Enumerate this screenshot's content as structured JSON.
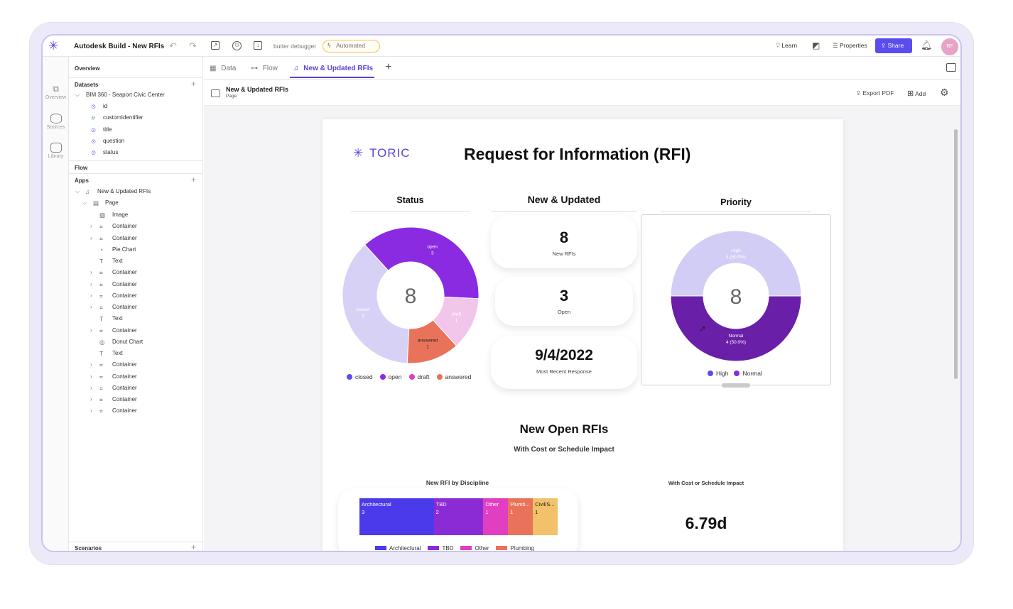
{
  "app": {
    "title": "Autodesk Build - New RFIs",
    "debugger": "butter debugger",
    "automated": "Automated",
    "learn": "Learn",
    "properties": "Properties",
    "share": "Share",
    "avatar": "RF"
  },
  "rail": [
    {
      "label": "Overview",
      "icon": "overview-icon"
    },
    {
      "label": "Sources",
      "icon": "database-icon"
    },
    {
      "label": "Library",
      "icon": "library-icon"
    }
  ],
  "sidebar": {
    "overview": "Overview",
    "datasets": "Datasets",
    "dataset_name": "BIM 360 - Seaport Civic Center",
    "fields": [
      "id",
      "customIdentifier",
      "title",
      "question",
      "status"
    ],
    "flow": "Flow",
    "apps": "Apps",
    "app_name": "New & Updated RFIs",
    "page": "Page",
    "components": [
      "Image",
      "Container",
      "Container",
      "Pie Chart",
      "Text",
      "Container",
      "Container",
      "Container",
      "Container",
      "Text",
      "Container",
      "Donut Chart",
      "Text",
      "Container",
      "Container",
      "Container",
      "Container",
      "Container"
    ],
    "scenarios": "Scenarios"
  },
  "tabs": [
    "Data",
    "Flow",
    "New & Updated RFIs"
  ],
  "pagebar": {
    "title": "New & Updated RFIs",
    "subtitle": "Page",
    "export": "Export PDF",
    "add": "Add"
  },
  "report": {
    "logo": "TORIC",
    "title": "Request for Information (RFI)",
    "status_title": "Status",
    "new_updated_title": "New & Updated",
    "priority_title": "Priority",
    "kpis": [
      {
        "value": "8",
        "label": "New RFIs"
      },
      {
        "value": "3",
        "label": "Open"
      },
      {
        "value": "9/4/2022",
        "label": "Most Recent Response"
      }
    ],
    "open_title": "New Open RFIs",
    "open_subtitle": "With Cost or Schedule Impact",
    "discipline_title": "New RFI by Discipline",
    "impact_title": "With Cost or Schedule Impact",
    "impact_value": "6.79d"
  },
  "status_chart": {
    "type": "pie",
    "center": "8",
    "slices": [
      {
        "name": "open",
        "value": 3,
        "color": "#8a2be2"
      },
      {
        "name": "draft",
        "value": 1,
        "color": "#f2c6ea"
      },
      {
        "name": "answered",
        "value": 1,
        "color": "#e8735a"
      },
      {
        "name": "closed",
        "value": 3,
        "color": "#d7d1f5"
      }
    ],
    "legend": [
      {
        "name": "closed",
        "color": "#5b4cf0"
      },
      {
        "name": "open",
        "color": "#8a2be2"
      },
      {
        "name": "draft",
        "color": "#d63fc9"
      },
      {
        "name": "answered",
        "color": "#e8735a"
      }
    ]
  },
  "priority_chart": {
    "type": "pie",
    "center": "8",
    "slices": [
      {
        "name": "High",
        "label": "4 (50.0%)",
        "value": 4,
        "color": "#d2cdf5"
      },
      {
        "name": "Normal",
        "label": "4 (50.0%)",
        "value": 4,
        "color": "#6a1fa8"
      }
    ],
    "legend": [
      {
        "name": "High",
        "color": "#5b4cf0"
      },
      {
        "name": "Normal",
        "color": "#8a2be2"
      }
    ]
  },
  "discipline_chart": {
    "type": "bar",
    "segments": [
      {
        "name": "Architectural",
        "label": "Architectural",
        "value": 3,
        "color": "#4b3aea"
      },
      {
        "name": "TBD",
        "label": "TBD",
        "value": 2,
        "color": "#8a2bd6"
      },
      {
        "name": "Other",
        "label": "Other",
        "value": 1,
        "color": "#e03fc2"
      },
      {
        "name": "Plumbing",
        "label": "Plumb...",
        "value": 1,
        "color": "#e8735a"
      },
      {
        "name": "Civil/Site",
        "label": "Civil/S...",
        "value": 1,
        "color": "#f3c16a"
      }
    ],
    "legend": [
      "Architectural",
      "TBD",
      "Other",
      "Plumbing"
    ]
  }
}
